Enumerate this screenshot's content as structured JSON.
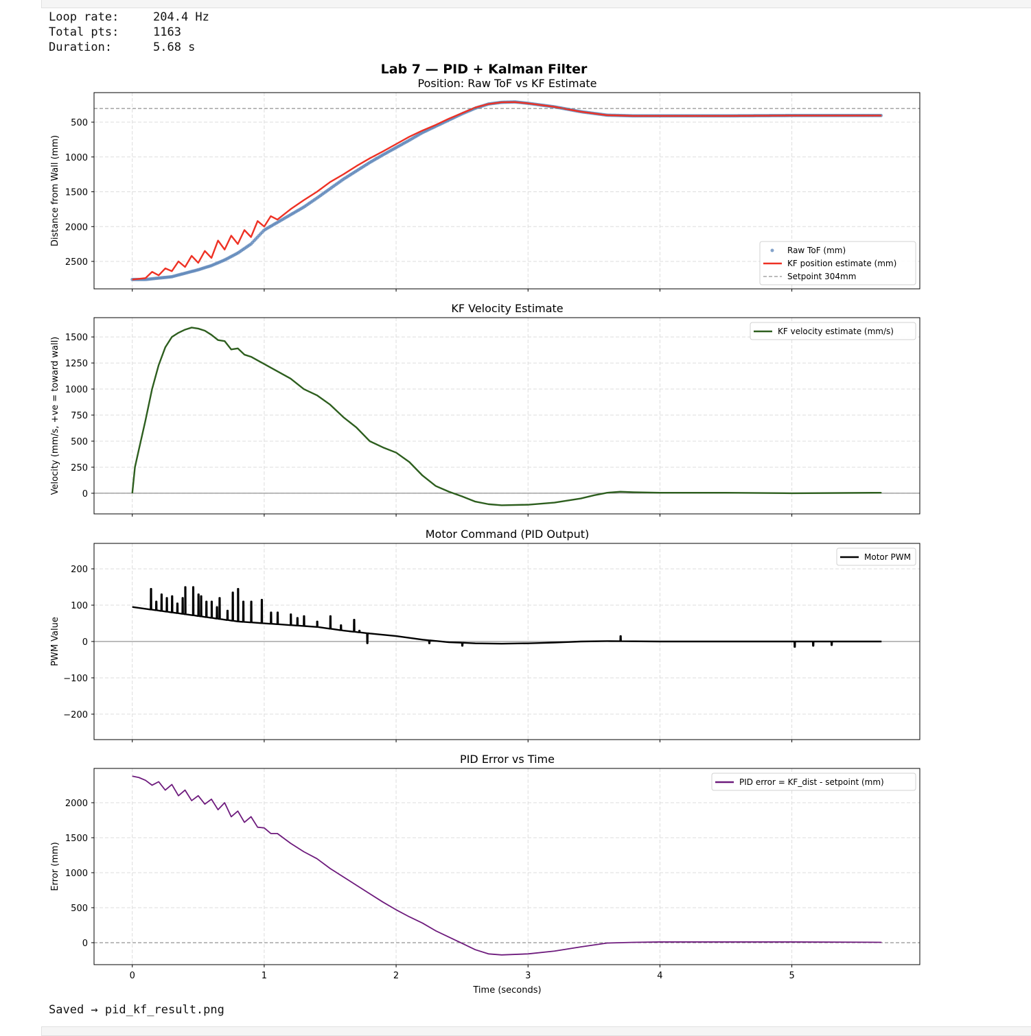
{
  "stats": [
    {
      "label": "Loop rate:",
      "value": "204.4 Hz"
    },
    {
      "label": "Total pts:",
      "value": "1163"
    },
    {
      "label": "Duration:",
      "value": "5.68 s"
    }
  ],
  "saved_text": "Saved → pid_kf_result.png",
  "chart_data": {
    "suptitle": "Lab 7 — PID + Kalman Filter",
    "xlabel": "Time (seconds)",
    "xlim": [
      -0.29,
      5.97
    ],
    "xticks": [
      0,
      1,
      2,
      3,
      4,
      5
    ],
    "grid": true,
    "panels": [
      {
        "type": "line",
        "title": "Position: Raw ToF vs KF Estimate",
        "ylabel": "Distance from Wall (mm)",
        "ylim": [
          2894,
          76
        ],
        "inverted": true,
        "yticks": [
          500,
          1000,
          1500,
          2000,
          2500
        ],
        "legend": "bottom-right",
        "series": [
          {
            "name": "Raw ToF (mm)",
            "kind": "scatter",
            "color": "#5b84b8",
            "x": [
              0,
              0.1,
              0.2,
              0.3,
              0.4,
              0.5,
              0.6,
              0.7,
              0.8,
              0.9,
              1.0,
              1.1,
              1.2,
              1.3,
              1.4,
              1.5,
              1.6,
              1.7,
              1.8,
              1.9,
              2.0,
              2.1,
              2.2,
              2.3,
              2.4,
              2.5,
              2.6,
              2.7,
              2.8,
              2.9,
              3.0,
              3.2,
              3.4,
              3.6,
              3.8,
              4.0,
              4.5,
              5.0,
              5.68
            ],
            "y": [
              2760,
              2760,
              2740,
              2720,
              2670,
              2620,
              2560,
              2480,
              2380,
              2250,
              2050,
              1940,
              1830,
              1720,
              1590,
              1455,
              1320,
              1200,
              1080,
              970,
              865,
              760,
              650,
              560,
              470,
              380,
              300,
              240,
              215,
              210,
              230,
              280,
              350,
              400,
              410,
              410,
              410,
              405,
              405
            ]
          },
          {
            "name": "KF position estimate (mm)",
            "kind": "line",
            "color": "#ee3124",
            "x": [
              0,
              0.1,
              0.15,
              0.2,
              0.25,
              0.3,
              0.35,
              0.4,
              0.45,
              0.5,
              0.55,
              0.6,
              0.65,
              0.7,
              0.75,
              0.8,
              0.85,
              0.9,
              0.95,
              1.0,
              1.05,
              1.1,
              1.2,
              1.3,
              1.4,
              1.5,
              1.6,
              1.7,
              1.8,
              1.9,
              2.0,
              2.1,
              2.2,
              2.3,
              2.4,
              2.5,
              2.6,
              2.7,
              2.8,
              2.9,
              3.0,
              3.2,
              3.4,
              3.6,
              3.8,
              4.0,
              4.5,
              5.0,
              5.68
            ],
            "y": [
              2760,
              2740,
              2650,
              2700,
              2600,
              2640,
              2500,
              2580,
              2420,
              2520,
              2350,
              2450,
              2200,
              2330,
              2130,
              2250,
              2050,
              2150,
              1920,
              2000,
              1850,
              1900,
              1750,
              1620,
              1500,
              1360,
              1250,
              1130,
              1020,
              920,
              815,
              710,
              620,
              540,
              450,
              370,
              290,
              240,
              215,
              212,
              230,
              280,
              350,
              400,
              410,
              410,
              410,
              405,
              405
            ]
          },
          {
            "name": "Setpoint 304mm",
            "kind": "hline",
            "color": "#777777",
            "value": 304
          }
        ]
      },
      {
        "type": "line",
        "title": "KF Velocity Estimate",
        "ylabel": "Velocity (mm/s,  +ve = toward wall)",
        "ylim": [
          -198,
          1685
        ],
        "yticks": [
          0,
          250,
          500,
          750,
          1000,
          1250,
          1500
        ],
        "legend": "top-right",
        "zero_line": true,
        "series": [
          {
            "name": "KF velocity estimate (mm/s)",
            "kind": "line",
            "color": "#2d5e1e",
            "x": [
              0,
              0.02,
              0.05,
              0.1,
              0.15,
              0.2,
              0.25,
              0.3,
              0.35,
              0.4,
              0.45,
              0.5,
              0.55,
              0.6,
              0.65,
              0.7,
              0.75,
              0.8,
              0.85,
              0.9,
              1.0,
              1.1,
              1.2,
              1.3,
              1.4,
              1.5,
              1.6,
              1.7,
              1.8,
              1.9,
              2.0,
              2.1,
              2.2,
              2.3,
              2.4,
              2.5,
              2.6,
              2.7,
              2.8,
              3.0,
              3.2,
              3.4,
              3.5,
              3.6,
              3.7,
              3.8,
              4.0,
              4.5,
              5.0,
              5.68
            ],
            "y": [
              0,
              250,
              420,
              700,
              1000,
              1230,
              1400,
              1500,
              1540,
              1570,
              1590,
              1580,
              1560,
              1520,
              1470,
              1460,
              1380,
              1390,
              1330,
              1310,
              1240,
              1170,
              1100,
              1000,
              940,
              850,
              730,
              630,
              500,
              440,
              390,
              300,
              170,
              70,
              15,
              -30,
              -80,
              -105,
              -115,
              -110,
              -90,
              -50,
              -20,
              5,
              15,
              10,
              5,
              5,
              0,
              5
            ]
          }
        ]
      },
      {
        "type": "line",
        "title": "Motor Command (PID Output)",
        "ylabel": "PWM Value",
        "ylim": [
          -270,
          270
        ],
        "yticks": [
          -200,
          -100,
          0,
          100,
          200
        ],
        "legend": "top-right",
        "zero_line": true,
        "series": [
          {
            "name": "Motor PWM",
            "kind": "line",
            "color": "#000000",
            "x": [
              0,
              0.2,
              0.4,
              0.6,
              0.8,
              1.0,
              1.2,
              1.4,
              1.6,
              1.8,
              2.0,
              2.2,
              2.4,
              2.6,
              2.8,
              3.0,
              3.2,
              3.4,
              3.6,
              4.0,
              5.68
            ],
            "y": [
              95,
              85,
              75,
              65,
              55,
              50,
              45,
              40,
              30,
              22,
              15,
              5,
              -2,
              -5,
              -6,
              -5,
              -3,
              0,
              1,
              0,
              0
            ],
            "spikes": {
              "x": [
                0.14,
                0.18,
                0.22,
                0.26,
                0.3,
                0.34,
                0.38,
                0.4,
                0.46,
                0.5,
                0.52,
                0.56,
                0.6,
                0.64,
                0.66,
                0.72,
                0.76,
                0.8,
                0.84,
                0.9,
                0.98,
                1.05,
                1.1,
                1.2,
                1.25,
                1.3,
                1.4,
                1.5,
                1.58,
                1.68,
                1.72,
                1.78,
                2.25,
                2.5,
                3.7,
                5.02,
                5.16,
                5.3
              ],
              "y": [
                145,
                110,
                130,
                120,
                125,
                105,
                120,
                150,
                150,
                130,
                125,
                110,
                110,
                95,
                120,
                85,
                135,
                145,
                110,
                110,
                115,
                80,
                80,
                75,
                65,
                70,
                55,
                70,
                45,
                60,
                30,
                -5,
                -5,
                -12,
                15,
                -15,
                -12,
                -10
              ]
            }
          }
        ]
      },
      {
        "type": "line",
        "title": "PID Error vs Time",
        "ylabel": "Error (mm)",
        "ylim": [
          -314,
          2490
        ],
        "yticks": [
          0,
          500,
          1000,
          1500,
          2000
        ],
        "legend": "top-right",
        "zero_dashed": true,
        "series": [
          {
            "name": "PID error = KF_dist - setpoint (mm)",
            "kind": "line",
            "color": "#6d1a7c",
            "x": [
              0,
              0.05,
              0.1,
              0.15,
              0.2,
              0.25,
              0.3,
              0.35,
              0.4,
              0.45,
              0.5,
              0.55,
              0.6,
              0.65,
              0.7,
              0.75,
              0.8,
              0.85,
              0.9,
              0.95,
              1.0,
              1.05,
              1.1,
              1.2,
              1.3,
              1.4,
              1.5,
              1.6,
              1.7,
              1.8,
              1.9,
              2.0,
              2.1,
              2.2,
              2.3,
              2.4,
              2.5,
              2.6,
              2.7,
              2.8,
              3.0,
              3.2,
              3.4,
              3.6,
              3.8,
              4.0,
              5.0,
              5.68
            ],
            "y": [
              2380,
              2360,
              2320,
              2250,
              2300,
              2180,
              2260,
              2100,
              2180,
              2030,
              2100,
              1980,
              2050,
              1900,
              2000,
              1800,
              1880,
              1720,
              1800,
              1650,
              1640,
              1560,
              1560,
              1420,
              1300,
              1200,
              1060,
              940,
              820,
              700,
              580,
              470,
              370,
              280,
              170,
              80,
              -10,
              -100,
              -160,
              -175,
              -160,
              -120,
              -60,
              -5,
              5,
              10,
              10,
              5
            ]
          }
        ]
      }
    ]
  }
}
